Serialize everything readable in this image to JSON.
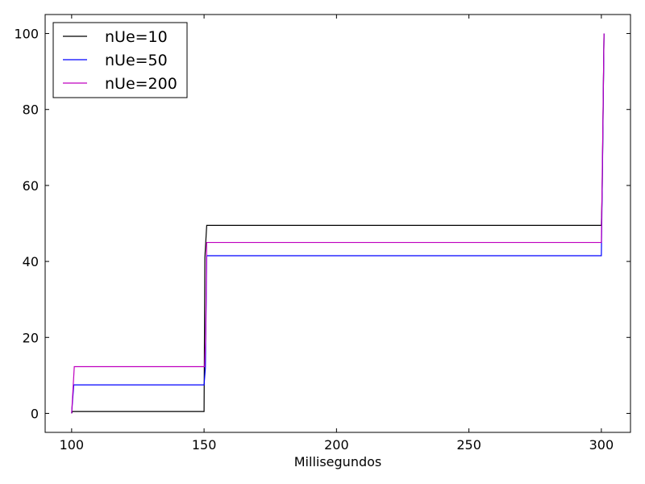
{
  "chart_data": {
    "type": "line",
    "xlabel": "Millisegundos",
    "ylabel": "",
    "xlim": [
      90,
      311
    ],
    "ylim": [
      -5,
      105
    ],
    "xticks": [
      100,
      150,
      200,
      250,
      300
    ],
    "yticks": [
      0,
      20,
      40,
      60,
      80,
      100
    ],
    "grid": false,
    "legend_position": "top-left",
    "series": [
      {
        "name": "nUe=10",
        "color": "#000000",
        "points": [
          [
            100,
            0
          ],
          [
            100.3,
            0.5
          ],
          [
            150,
            0.5
          ],
          [
            150.3,
            41
          ],
          [
            151,
            49.5
          ],
          [
            300,
            49.5
          ],
          [
            300.3,
            58
          ],
          [
            301,
            100
          ]
        ]
      },
      {
        "name": "nUe=50",
        "color": "#0000ff",
        "points": [
          [
            100,
            0
          ],
          [
            100.8,
            7.5
          ],
          [
            150,
            7.5
          ],
          [
            150.5,
            12
          ],
          [
            151,
            41.5
          ],
          [
            300,
            41.5
          ],
          [
            300.5,
            69
          ],
          [
            301,
            100
          ]
        ]
      },
      {
        "name": "nUe=200",
        "color": "#bf00bf",
        "points": [
          [
            100,
            0
          ],
          [
            101,
            12.3
          ],
          [
            150.2,
            12.3
          ],
          [
            150.6,
            20
          ],
          [
            151,
            45
          ],
          [
            300,
            45
          ],
          [
            300.5,
            72
          ],
          [
            301,
            100
          ]
        ]
      }
    ]
  }
}
